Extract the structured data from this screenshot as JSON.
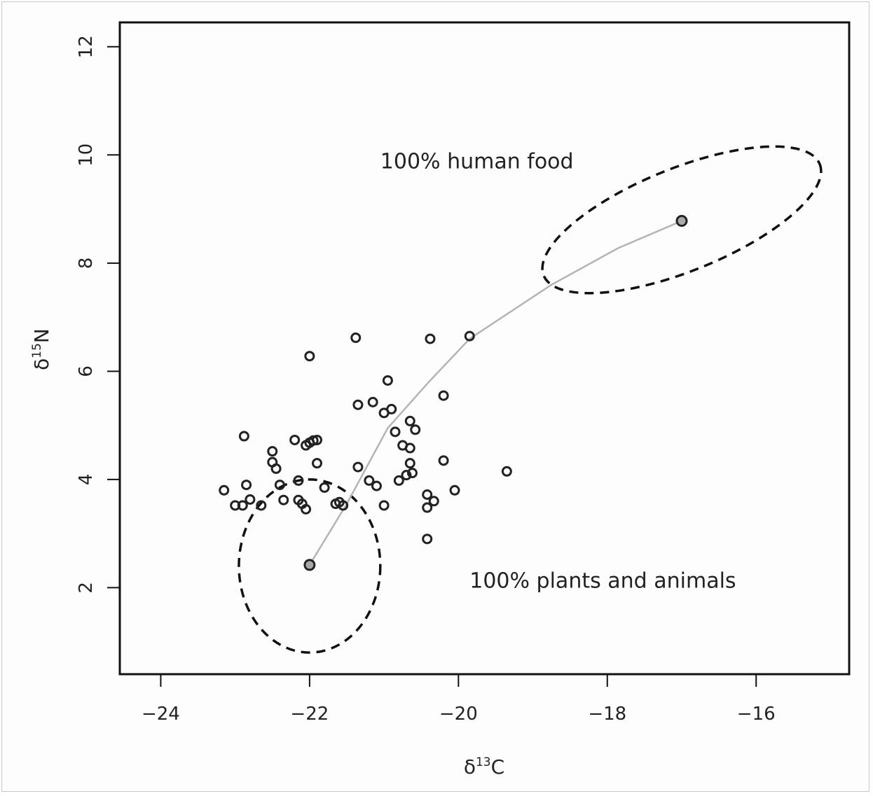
{
  "chart_data": {
    "type": "scatter",
    "xlabel": {
      "prefix": "δ",
      "sup": "13",
      "suffix": "C"
    },
    "ylabel": {
      "prefix": "δ",
      "sup": "15",
      "suffix": "N"
    },
    "xlim": [
      -24.55,
      -14.75
    ],
    "ylim": [
      0.4,
      12.45
    ],
    "xticks": [
      -24,
      -22,
      -20,
      -18,
      -16
    ],
    "xtick_labels": [
      "−24",
      "−22",
      "−20",
      "−18",
      "−16"
    ],
    "yticks": [
      2,
      4,
      6,
      8,
      10,
      12
    ],
    "ytick_labels": [
      "2",
      "4",
      "6",
      "8",
      "10",
      "12"
    ],
    "grid": false,
    "legend": "none",
    "annotations": [
      {
        "id": "human",
        "text": "100% human food",
        "x": -21.05,
        "y": 9.75
      },
      {
        "id": "plants",
        "text": "100% plants and animals",
        "x": -19.85,
        "y": 2.0
      }
    ],
    "colors": {
      "points": "#222222",
      "mixing_line": "#b4b4b4",
      "endpoint_fill": "#a8a8a8",
      "ellipse": "#111111"
    },
    "points": [
      [
        -23.15,
        3.8
      ],
      [
        -23.0,
        3.52
      ],
      [
        -22.9,
        3.52
      ],
      [
        -22.88,
        4.8
      ],
      [
        -22.85,
        3.9
      ],
      [
        -22.8,
        3.63
      ],
      [
        -22.65,
        3.52
      ],
      [
        -22.5,
        4.52
      ],
      [
        -22.5,
        4.32
      ],
      [
        -22.45,
        4.2
      ],
      [
        -22.4,
        3.9
      ],
      [
        -22.35,
        3.62
      ],
      [
        -22.2,
        4.73
      ],
      [
        -22.15,
        3.98
      ],
      [
        -22.15,
        3.62
      ],
      [
        -22.1,
        3.55
      ],
      [
        -22.05,
        4.63
      ],
      [
        -22.05,
        3.45
      ],
      [
        -22.0,
        4.68
      ],
      [
        -22.0,
        6.28
      ],
      [
        -21.95,
        4.72
      ],
      [
        -21.9,
        4.73
      ],
      [
        -21.9,
        4.3
      ],
      [
        -21.8,
        3.85
      ],
      [
        -21.65,
        3.55
      ],
      [
        -21.6,
        3.58
      ],
      [
        -21.55,
        3.52
      ],
      [
        -21.38,
        6.62
      ],
      [
        -21.35,
        5.38
      ],
      [
        -21.35,
        4.23
      ],
      [
        -21.2,
        3.98
      ],
      [
        -21.15,
        5.43
      ],
      [
        -21.1,
        3.88
      ],
      [
        -21.0,
        5.23
      ],
      [
        -21.0,
        3.52
      ],
      [
        -20.95,
        5.83
      ],
      [
        -20.9,
        5.3
      ],
      [
        -20.85,
        4.88
      ],
      [
        -20.8,
        3.98
      ],
      [
        -20.75,
        4.63
      ],
      [
        -20.7,
        4.08
      ],
      [
        -20.65,
        5.08
      ],
      [
        -20.65,
        4.58
      ],
      [
        -20.65,
        4.3
      ],
      [
        -20.62,
        4.12
      ],
      [
        -20.58,
        4.92
      ],
      [
        -20.42,
        3.72
      ],
      [
        -20.42,
        3.48
      ],
      [
        -20.42,
        2.9
      ],
      [
        -20.38,
        6.6
      ],
      [
        -20.33,
        3.6
      ],
      [
        -20.2,
        5.55
      ],
      [
        -20.2,
        4.35
      ],
      [
        -20.05,
        3.8
      ],
      [
        -19.85,
        6.65
      ],
      [
        -19.35,
        4.15
      ]
    ],
    "endpoints": [
      [
        -22.0,
        2.42
      ],
      [
        -17.0,
        8.78
      ]
    ],
    "mixing_line": [
      [
        -22.0,
        2.42
      ],
      [
        -21.5,
        3.55
      ],
      [
        -20.95,
        4.95
      ],
      [
        -20.4,
        5.8
      ],
      [
        -19.85,
        6.6
      ],
      [
        -18.75,
        7.6
      ],
      [
        -17.85,
        8.28
      ],
      [
        -17.0,
        8.78
      ]
    ],
    "ellipses": [
      {
        "id": "plants-ellipse",
        "cx": -22.0,
        "cy": 2.4,
        "rx": 0.95,
        "ry": 1.6,
        "rotation_deg": 0
      },
      {
        "id": "human-ellipse",
        "cx": -17.0,
        "cy": 8.8,
        "rx": 2.0,
        "ry": 0.95,
        "rotation_deg": 22
      }
    ]
  }
}
